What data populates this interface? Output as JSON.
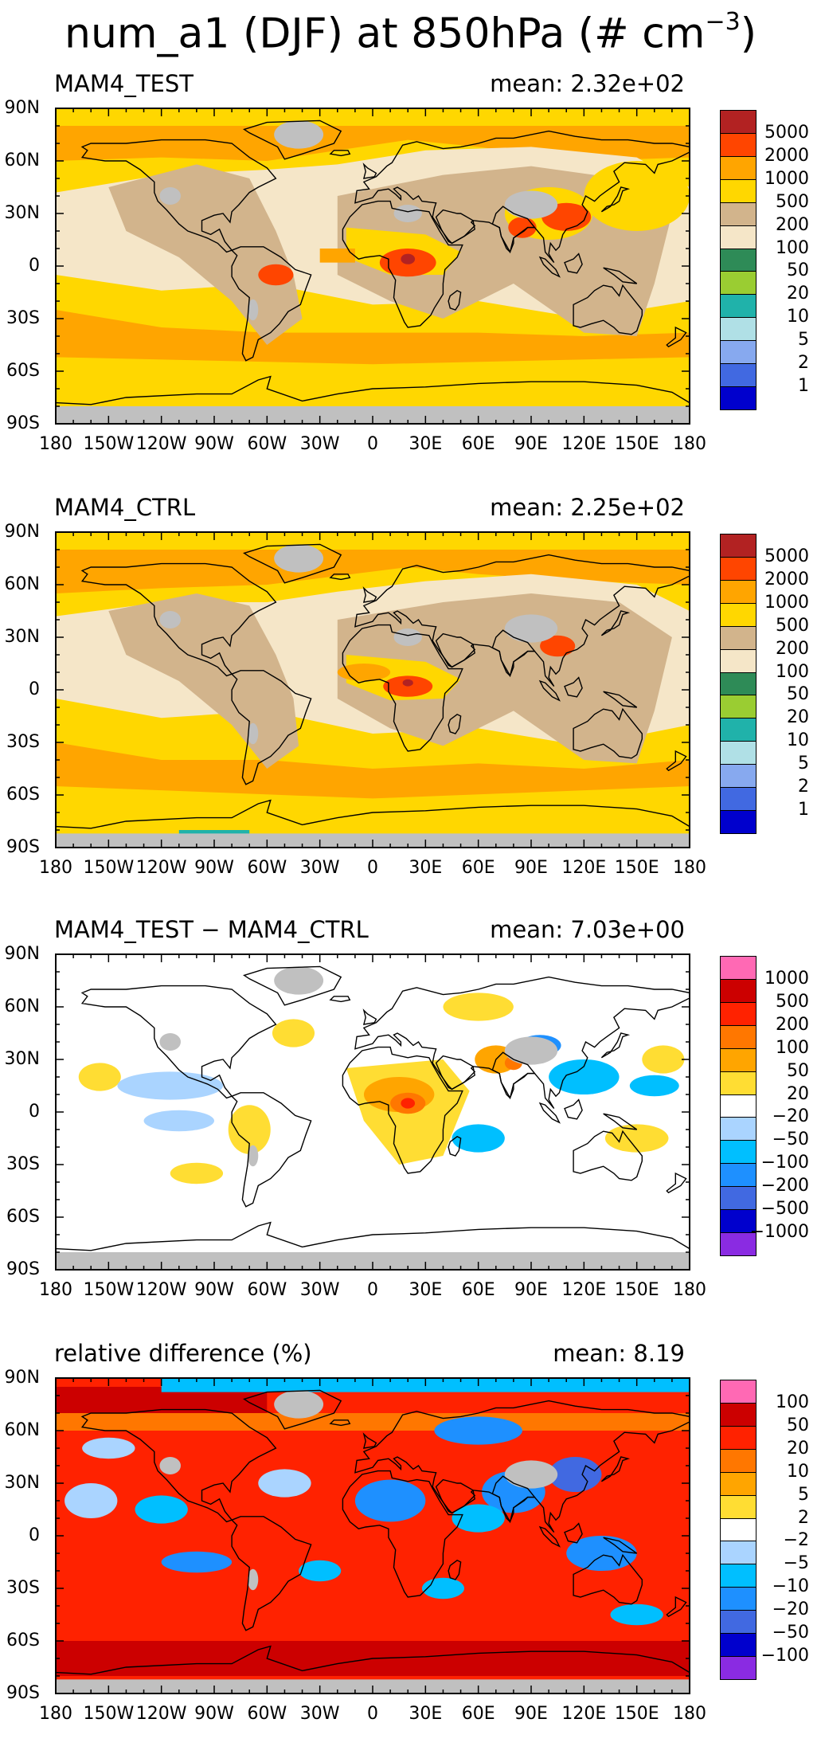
{
  "title": {
    "main": "num_a1 (DJF) at 850hPa (# cm",
    "exp": "−3",
    "close": ")"
  },
  "axes": {
    "lat_labels": [
      "90N",
      "60N",
      "30N",
      "0",
      "30S",
      "60S",
      "90S"
    ],
    "lon_labels": [
      "180",
      "150W",
      "120W",
      "90W",
      "60W",
      "30W",
      "0",
      "30E",
      "60E",
      "90E",
      "120E",
      "150E",
      "180"
    ]
  },
  "panels": [
    {
      "id": "test",
      "title": "MAM4_TEST",
      "mean": "mean:  2.32e+02",
      "legend": {
        "colors": [
          "#b22222",
          "#ff4500",
          "#ffa500",
          "#ffd700",
          "#d2b48c",
          "#f5e6c8",
          "#2e8b57",
          "#9acd32",
          "#20b2aa",
          "#b0e0e6",
          "#87a9ef",
          "#4169e1",
          "#0000cd"
        ],
        "labels": [
          "5000",
          "2000",
          "1000",
          "500",
          "200",
          "100",
          "50",
          "20",
          "10",
          "5",
          "2",
          "1"
        ]
      }
    },
    {
      "id": "ctrl",
      "title": "MAM4_CTRL",
      "mean": "mean:  2.25e+02",
      "legend": {
        "colors": [
          "#b22222",
          "#ff4500",
          "#ffa500",
          "#ffd700",
          "#d2b48c",
          "#f5e6c8",
          "#2e8b57",
          "#9acd32",
          "#20b2aa",
          "#b0e0e6",
          "#87a9ef",
          "#4169e1",
          "#0000cd"
        ],
        "labels": [
          "5000",
          "2000",
          "1000",
          "500",
          "200",
          "100",
          "50",
          "20",
          "10",
          "5",
          "2",
          "1"
        ]
      }
    },
    {
      "id": "diff",
      "title": "MAM4_TEST − MAM4_CTRL",
      "mean": "mean:  7.03e+00",
      "legend": {
        "colors": [
          "#ff69b4",
          "#cc0000",
          "#ff2200",
          "#ff7700",
          "#ffa500",
          "#ffdd33",
          "#ffffff",
          "#aad4ff",
          "#00bfff",
          "#1e90ff",
          "#4169e1",
          "#0000cd",
          "#8a2be2"
        ],
        "labels": [
          "1000",
          "500",
          "200",
          "100",
          "50",
          "20",
          "−20",
          "−50",
          "−100",
          "−200",
          "−500",
          "−1000"
        ]
      }
    },
    {
      "id": "rel",
      "title": "relative difference (%)",
      "mean": "mean:   8.19",
      "legend": {
        "colors": [
          "#ff69b4",
          "#cc0000",
          "#ff2200",
          "#ff7700",
          "#ffa500",
          "#ffdd33",
          "#ffffff",
          "#aad4ff",
          "#00bfff",
          "#1e90ff",
          "#4169e1",
          "#0000cd",
          "#8a2be2"
        ],
        "labels": [
          "100",
          "50",
          "20",
          "10",
          "5",
          "2",
          "−2",
          "−5",
          "−10",
          "−20",
          "−50",
          "−100"
        ]
      }
    }
  ]
}
